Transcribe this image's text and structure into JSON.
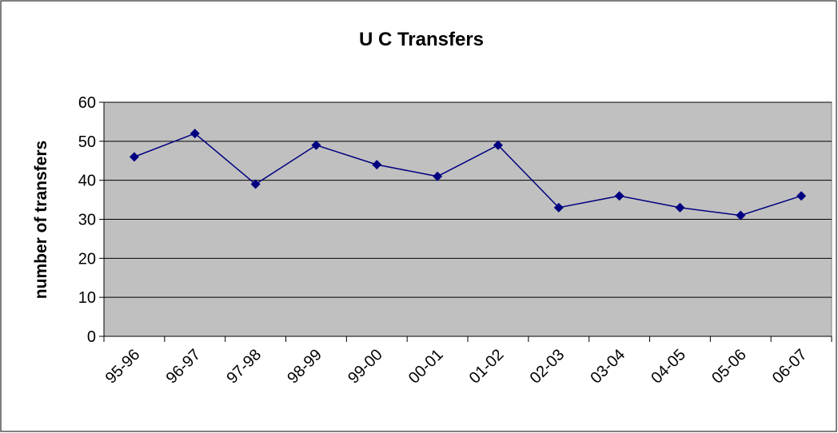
{
  "chart_data": {
    "type": "line",
    "title": "U C Transfers",
    "y_label": "number of transfers",
    "categories": [
      "95-96",
      "96-97",
      "97-98",
      "98-99",
      "99-00",
      "00-01",
      "01-02",
      "02-03",
      "03-04",
      "04-05",
      "05-06",
      "06-07"
    ],
    "series": [
      {
        "name": "U C Transfers",
        "color": "#000080",
        "values": [
          46,
          52,
          39,
          49,
          44,
          41,
          49,
          33,
          36,
          33,
          31,
          36
        ]
      }
    ],
    "ylim": [
      0,
      60
    ],
    "yticks": [
      0,
      10,
      20,
      30,
      40,
      50,
      60
    ],
    "grid": true,
    "plot_background": "#c0c0c0"
  }
}
